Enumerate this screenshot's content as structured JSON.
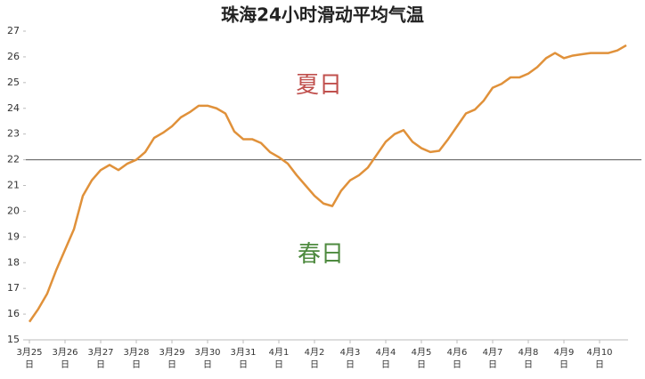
{
  "chart_data": {
    "type": "line",
    "title": "珠海24小时滑动平均气温",
    "categories": [
      "3月25日",
      null,
      null,
      null,
      "3月26日",
      null,
      null,
      null,
      "3月27日",
      null,
      null,
      null,
      "3月28日",
      null,
      null,
      null,
      "3月29日",
      null,
      null,
      null,
      "3月30日",
      null,
      null,
      null,
      "3月31日",
      null,
      null,
      null,
      "4月1日",
      null,
      null,
      null,
      "4月2日",
      null,
      null,
      null,
      "4月3日",
      null,
      null,
      null,
      "4月4日",
      null,
      null,
      null,
      "4月5日",
      null,
      null,
      null,
      "4月6日",
      null,
      null,
      null,
      "4月7日",
      null,
      null,
      null,
      "4月8日",
      null,
      null,
      null,
      "4月9日",
      null,
      null,
      null,
      "4月10日",
      null,
      null,
      null
    ],
    "series": [
      {
        "color": "#e0913a",
        "values": [
          15.7,
          16.2,
          16.8,
          17.7,
          18.5,
          19.3,
          20.6,
          21.2,
          21.6,
          21.8,
          21.6,
          21.85,
          22.0,
          22.3,
          22.85,
          23.05,
          23.3,
          23.65,
          23.85,
          24.1,
          24.1,
          24.0,
          23.8,
          23.1,
          22.8,
          22.8,
          22.65,
          22.3,
          22.1,
          21.85,
          21.4,
          21.0,
          20.6,
          20.3,
          20.2,
          20.8,
          21.2,
          21.4,
          21.7,
          22.2,
          22.7,
          23.0,
          23.15,
          22.7,
          22.45,
          22.3,
          22.35,
          22.8,
          23.3,
          23.8,
          23.95,
          24.3,
          24.8,
          24.95,
          25.2,
          25.2,
          25.35,
          25.6,
          25.95,
          26.15,
          25.95,
          26.05,
          26.1,
          26.15,
          26.15,
          26.15,
          26.25,
          26.45
        ]
      }
    ],
    "reference_line": 22,
    "annotations": [
      {
        "text": "夏日",
        "color": "#c0504d"
      },
      {
        "text": "春日",
        "color": "#4e8a3f"
      }
    ],
    "ylim": [
      15,
      27
    ],
    "yticks": [
      15,
      16,
      17,
      18,
      19,
      20,
      21,
      22,
      23,
      24,
      25,
      26,
      27
    ]
  }
}
